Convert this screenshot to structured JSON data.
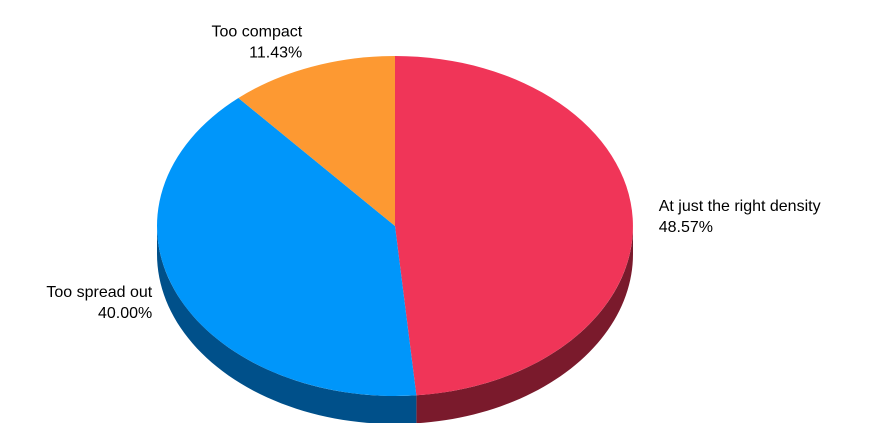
{
  "chart_data": {
    "type": "pie",
    "style": "3d",
    "start_angle": "top",
    "direction": "clockwise",
    "slices": [
      {
        "label": "At just the right density",
        "value": 48.57,
        "value_label": "48.57%",
        "color": "#f03558",
        "side_color": "#7a1a2c"
      },
      {
        "label": "Too spread out",
        "value": 40.0,
        "value_label": "40.00%",
        "color": "#0096fa",
        "side_color": "#00508a"
      },
      {
        "label": "Too compact",
        "value": 11.43,
        "value_label": "11.43%",
        "color": "#fd9932",
        "side_color": "#8a5418"
      }
    ]
  }
}
